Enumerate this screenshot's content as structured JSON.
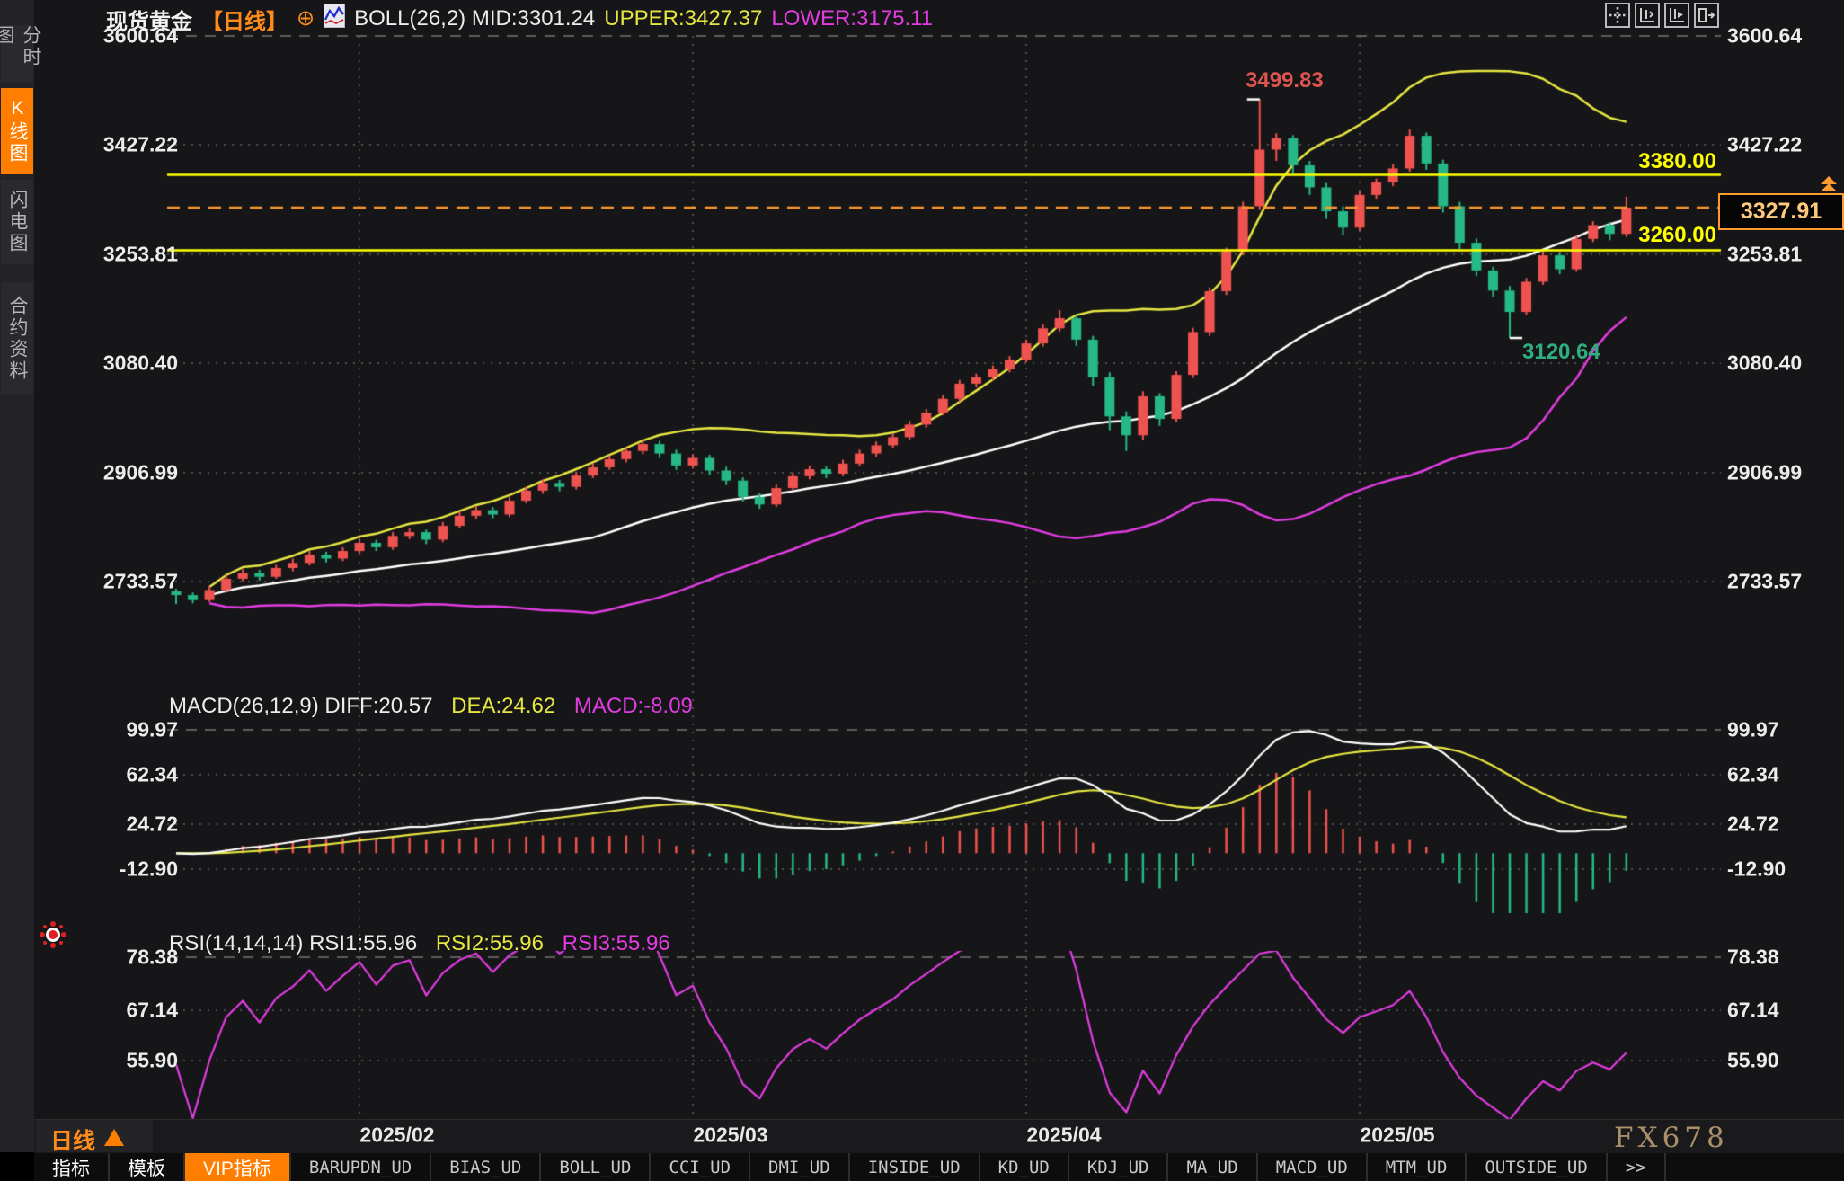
{
  "header": {
    "symbol": "现货黄金",
    "period_tag": "【日线】",
    "plus_icon": "⊕",
    "boll_mid": "BOLL(26,2) MID:3301.24",
    "boll_upper": "UPPER:3427.37",
    "boll_lower": "LOWER:3175.11"
  },
  "sidebar": {
    "tabs": [
      {
        "label": "分时图",
        "active": false
      },
      {
        "label": "K线图",
        "active": true
      },
      {
        "label": "闪电图",
        "active": false
      },
      {
        "label": "合约资料",
        "active": false
      }
    ]
  },
  "toolbar": {
    "icons": [
      "crosshair-icon",
      "axis-left-icon",
      "axis-play-icon",
      "panel-collapse-icon"
    ]
  },
  "main_axis": [
    "3600.64",
    "3427.22",
    "3253.81",
    "3080.40",
    "2906.99",
    "2733.57"
  ],
  "macd_pane": {
    "title": "MACD(26,12,9) DIFF:20.57",
    "dea": "DEA:24.62",
    "macd": "MACD:-8.09",
    "axis": [
      "99.97",
      "62.34",
      "24.72",
      "-12.90"
    ]
  },
  "rsi_pane": {
    "title": "RSI(14,14,14) RSI1:55.96",
    "rsi2": "RSI2:55.96",
    "rsi3": "RSI3:55.96",
    "axis": [
      "78.38",
      "67.14",
      "55.90"
    ]
  },
  "annotations": {
    "high_label": "3499.83",
    "low_label": "3120.64",
    "resistance_label": "3380.00",
    "support_label": "3260.00",
    "current_price_label": "3327.91"
  },
  "bottom": {
    "period": "日线",
    "dates": [
      "2025/02",
      "2025/03",
      "2025/04",
      "2025/05"
    ],
    "watermark": "FX678",
    "tabs": [
      "指标",
      "模板",
      "VIP指标",
      "BARUPDN_UD",
      "BIAS_UD",
      "BOLL_UD",
      "CCI_UD",
      "DMI_UD",
      "INSIDE_UD",
      "KD_UD",
      "KDJ_UD",
      "MA_UD",
      "MACD_UD",
      "MTM_UD",
      "OUTSIDE_UD",
      ">>"
    ]
  },
  "chart_data": {
    "type": "candlestick",
    "title": "现货黄金 日线",
    "y_axis": {
      "main": {
        "ticks": [
          3600.64,
          3427.22,
          3253.81,
          3080.4,
          2906.99,
          2733.57
        ]
      },
      "macd": {
        "ticks": [
          99.97,
          62.34,
          24.72,
          -12.9
        ]
      },
      "rsi": {
        "ticks": [
          78.38,
          67.14,
          55.9
        ]
      }
    },
    "months": [
      {
        "label": "2025/02",
        "index": 11
      },
      {
        "label": "2025/03",
        "index": 31
      },
      {
        "label": "2025/04",
        "index": 51
      },
      {
        "label": "2025/05",
        "index": 71
      }
    ],
    "indicators": {
      "boll": {
        "period": 26,
        "k": 2,
        "mid": 3301.24,
        "upper": 3427.37,
        "lower": 3175.11
      },
      "macd": {
        "fast": 12,
        "slow": 26,
        "signal": 9,
        "diff": 20.57,
        "dea": 24.62,
        "bar": -8.09
      },
      "rsi": {
        "periods": [
          14,
          14,
          14
        ],
        "values": [
          55.96,
          55.96,
          55.96
        ]
      }
    },
    "levels": {
      "resistance": 3380.0,
      "support": 3260.0,
      "last": 3327.91
    },
    "markers": {
      "high": {
        "index": 65,
        "price": 3499.83
      },
      "low": {
        "index": 80,
        "price": 3120.64
      }
    },
    "colors": {
      "up": "#ef5350",
      "down": "#26b887",
      "boll_upper": "#e6e642",
      "boll_mid": "#ffffff",
      "boll_lower": "#e23ce2",
      "level_line": "#ffff00",
      "last_line": "#ff9a2e",
      "grid": "#4f4f4f",
      "grid_dash": "#5e5e5e",
      "diff": "#ffffff",
      "dea": "#e6e642",
      "rsi": "#e23ce2"
    },
    "ohlc": [
      [
        2718,
        2722,
        2698,
        2712
      ],
      [
        2712,
        2716,
        2699,
        2704
      ],
      [
        2704,
        2726,
        2701,
        2720
      ],
      [
        2720,
        2744,
        2716,
        2738
      ],
      [
        2738,
        2753,
        2734,
        2747
      ],
      [
        2747,
        2752,
        2735,
        2741
      ],
      [
        2741,
        2760,
        2738,
        2755
      ],
      [
        2755,
        2770,
        2750,
        2763
      ],
      [
        2763,
        2782,
        2759,
        2776
      ],
      [
        2776,
        2781,
        2764,
        2770
      ],
      [
        2770,
        2788,
        2766,
        2782
      ],
      [
        2782,
        2801,
        2778,
        2795
      ],
      [
        2795,
        2800,
        2782,
        2788
      ],
      [
        2788,
        2812,
        2784,
        2806
      ],
      [
        2806,
        2818,
        2801,
        2812
      ],
      [
        2812,
        2816,
        2793,
        2800
      ],
      [
        2800,
        2828,
        2796,
        2822
      ],
      [
        2822,
        2844,
        2818,
        2838
      ],
      [
        2838,
        2853,
        2833,
        2847
      ],
      [
        2847,
        2852,
        2834,
        2840
      ],
      [
        2840,
        2868,
        2836,
        2862
      ],
      [
        2862,
        2884,
        2858,
        2878
      ],
      [
        2878,
        2896,
        2873,
        2890
      ],
      [
        2890,
        2895,
        2877,
        2884
      ],
      [
        2884,
        2908,
        2880,
        2902
      ],
      [
        2902,
        2921,
        2898,
        2915
      ],
      [
        2915,
        2934,
        2911,
        2928
      ],
      [
        2928,
        2947,
        2923,
        2941
      ],
      [
        2941,
        2958,
        2936,
        2952
      ],
      [
        2952,
        2957,
        2930,
        2937
      ],
      [
        2937,
        2943,
        2911,
        2918
      ],
      [
        2918,
        2936,
        2913,
        2930
      ],
      [
        2930,
        2935,
        2903,
        2910
      ],
      [
        2910,
        2916,
        2887,
        2894
      ],
      [
        2894,
        2899,
        2861,
        2868
      ],
      [
        2868,
        2874,
        2849,
        2856
      ],
      [
        2856,
        2888,
        2852,
        2882
      ],
      [
        2882,
        2907,
        2878,
        2901
      ],
      [
        2901,
        2918,
        2896,
        2912
      ],
      [
        2912,
        2917,
        2898,
        2905
      ],
      [
        2905,
        2927,
        2901,
        2921
      ],
      [
        2921,
        2943,
        2917,
        2937
      ],
      [
        2937,
        2956,
        2932,
        2950
      ],
      [
        2950,
        2969,
        2945,
        2963
      ],
      [
        2963,
        2989,
        2959,
        2983
      ],
      [
        2983,
        3008,
        2978,
        3002
      ],
      [
        3002,
        3030,
        2998,
        3024
      ],
      [
        3024,
        3054,
        3019,
        3048
      ],
      [
        3048,
        3064,
        3042,
        3058
      ],
      [
        3058,
        3077,
        3053,
        3071
      ],
      [
        3071,
        3092,
        3066,
        3086
      ],
      [
        3086,
        3118,
        3082,
        3112
      ],
      [
        3112,
        3142,
        3107,
        3136
      ],
      [
        3136,
        3165,
        3131,
        3152
      ],
      [
        3152,
        3157,
        3108,
        3118
      ],
      [
        3118,
        3124,
        3044,
        3058
      ],
      [
        3058,
        3066,
        2974,
        2996
      ],
      [
        2996,
        3004,
        2941,
        2966
      ],
      [
        2966,
        3036,
        2958,
        3028
      ],
      [
        3028,
        3033,
        2981,
        2992
      ],
      [
        2992,
        3068,
        2987,
        3062
      ],
      [
        3062,
        3137,
        3057,
        3130
      ],
      [
        3130,
        3201,
        3124,
        3195
      ],
      [
        3195,
        3264,
        3189,
        3258
      ],
      [
        3258,
        3337,
        3252,
        3330
      ],
      [
        3330,
        3499.83,
        3324,
        3420
      ],
      [
        3420,
        3446,
        3402,
        3438
      ],
      [
        3438,
        3443,
        3382,
        3395
      ],
      [
        3395,
        3402,
        3348,
        3360
      ],
      [
        3360,
        3367,
        3310,
        3322
      ],
      [
        3322,
        3330,
        3284,
        3296
      ],
      [
        3296,
        3354,
        3291,
        3348
      ],
      [
        3348,
        3374,
        3342,
        3368
      ],
      [
        3368,
        3397,
        3362,
        3390
      ],
      [
        3390,
        3452,
        3385,
        3442
      ],
      [
        3442,
        3447,
        3388,
        3398
      ],
      [
        3398,
        3404,
        3320,
        3330
      ],
      [
        3330,
        3337,
        3262,
        3272
      ],
      [
        3272,
        3279,
        3219,
        3228
      ],
      [
        3228,
        3234,
        3186,
        3196
      ],
      [
        3196,
        3203,
        3120.64,
        3162
      ],
      [
        3162,
        3216,
        3157,
        3210
      ],
      [
        3210,
        3258,
        3205,
        3252
      ],
      [
        3252,
        3257,
        3222,
        3230
      ],
      [
        3230,
        3284,
        3226,
        3278
      ],
      [
        3278,
        3306,
        3273,
        3300
      ],
      [
        3300,
        3305,
        3276,
        3286
      ],
      [
        3286,
        3345,
        3281,
        3327.91
      ]
    ]
  }
}
